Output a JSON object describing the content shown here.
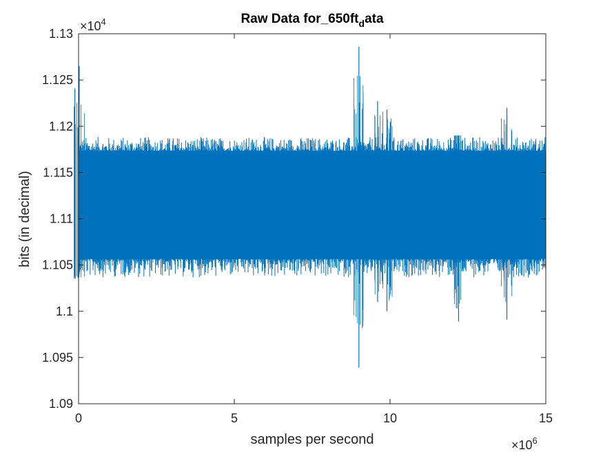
{
  "chart_data": {
    "type": "line",
    "title_main": "Raw Data for_650ft",
    "title_sub": "d",
    "title_tail": "ata",
    "xlabel": "samples per second",
    "ylabel": "bits (in decimal)",
    "x_multiplier": "×10",
    "x_exponent": "6",
    "y_multiplier": "×10",
    "y_exponent": "4",
    "xlim": [
      0,
      15
    ],
    "ylim": [
      1.09,
      1.13
    ],
    "x_ticks": [
      "0",
      "5",
      "10",
      "15"
    ],
    "y_ticks": [
      "1.09",
      "1.095",
      "1.1",
      "1.105",
      "1.11",
      "1.115",
      "1.12",
      "1.125",
      "1.13"
    ],
    "grid": false,
    "series": [
      {
        "color": "#0072BD",
        "band": {
          "lower": 1.1055,
          "upper": 1.1175
        },
        "outer": {
          "lower": 1.1035,
          "upper": 1.119
        },
        "events": [
          {
            "x": 0.02,
            "min": 1.104,
            "max": 1.1265
          },
          {
            "x": 9.0,
            "min": 1.0939,
            "max": 1.1286
          },
          {
            "x": 9.6,
            "min": 1.101,
            "max": 1.1227
          },
          {
            "x": 9.9,
            "min": 1.1,
            "max": 1.1218
          },
          {
            "x": 12.2,
            "min": 1.0989,
            "max": 1.119
          },
          {
            "x": 13.75,
            "min": 1.0991,
            "max": 1.122
          }
        ]
      }
    ]
  }
}
